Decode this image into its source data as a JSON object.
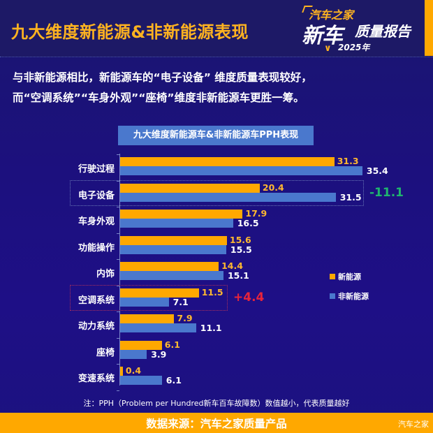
{
  "header": {
    "title": "九大维度新能源&非新能源表现",
    "logo": {
      "brand": "汽车之家",
      "main": "新车",
      "sub": "质量报告",
      "year": "2025年"
    },
    "accent_color": "#ffa800"
  },
  "summary": {
    "line1": "与非新能源相比，新能源车的“电子设备” 维度质量表现较好，",
    "line2": "而“空调系统”“车身外观”“座椅”维度非新能源车更胜一筹。"
  },
  "chart_data": {
    "type": "bar",
    "orientation": "horizontal",
    "title": "九大维度新能源车&非新能源车PPH表现",
    "categories": [
      "行驶过程",
      "电子设备",
      "车身外观",
      "功能操作",
      "内饰",
      "空调系统",
      "动力系统",
      "座椅",
      "变速系统"
    ],
    "series": [
      {
        "name": "新能源",
        "color": "#ffa800",
        "values": [
          31.3,
          20.4,
          17.9,
          15.6,
          14.4,
          11.5,
          7.9,
          6.1,
          0.4
        ]
      },
      {
        "name": "非新能源",
        "color": "#4a78cd",
        "values": [
          35.4,
          31.5,
          16.5,
          15.5,
          15.1,
          7.1,
          11.1,
          3.9,
          6.1
        ]
      }
    ],
    "annotations": [
      {
        "category": "电子设备",
        "text": "-11.1",
        "color": "#1fb56e"
      },
      {
        "category": "空调系统",
        "text": "+4.4",
        "color": "#e8243a"
      }
    ],
    "xlabel": "",
    "ylabel": "",
    "legend_position": "right",
    "grid": false
  },
  "legend": {
    "nev": "新能源",
    "ice": "非新能源"
  },
  "note": "注：PPH（Problem per Hundred新车百车故障数）数值越小，代表质量越好",
  "footer": {
    "source": "数据来源：汽车之家质量产品",
    "watermark": "汽车之家"
  }
}
